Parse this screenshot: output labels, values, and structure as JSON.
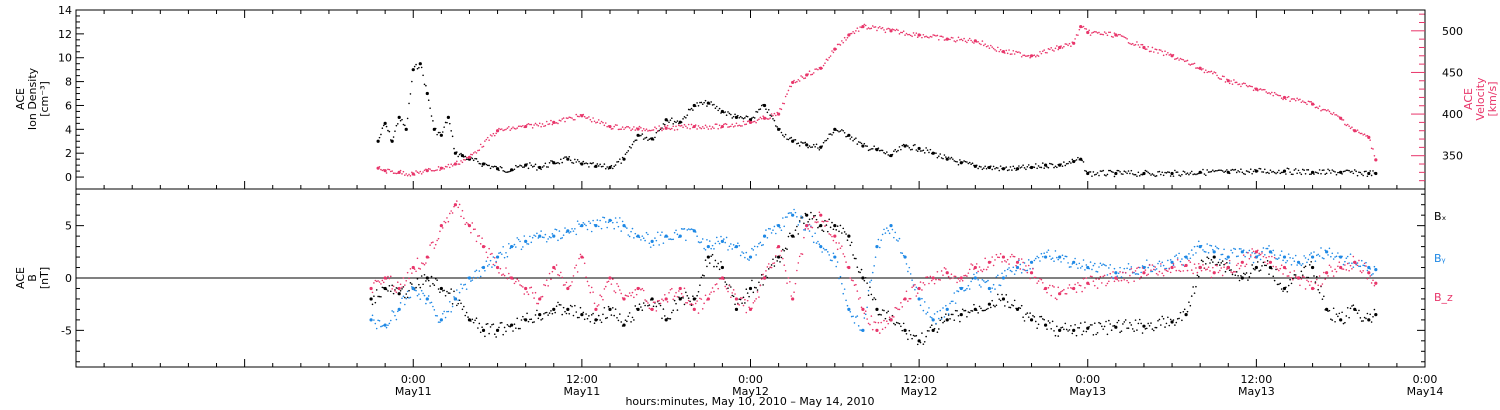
{
  "colors": {
    "black": "#000000",
    "pink": "#e8356a",
    "blue": "#1e88e5"
  },
  "x_axis": {
    "title": "hours:minutes, May 10, 2010 – May 14, 2010",
    "range_hours": [
      -24,
      72
    ],
    "ticks": [
      {
        "h": 0,
        "time": "0:00",
        "date": "May11"
      },
      {
        "h": 12,
        "time": "12:00",
        "date": "May11"
      },
      {
        "h": 24,
        "time": "0:00",
        "date": "May12"
      },
      {
        "h": 36,
        "time": "12:00",
        "date": "May12"
      },
      {
        "h": 48,
        "time": "0:00",
        "date": "May13"
      },
      {
        "h": 60,
        "time": "12:00",
        "date": "May13"
      },
      {
        "h": 72,
        "time": "0:00",
        "date": "May14"
      }
    ]
  },
  "chart_data": [
    {
      "type": "scatter",
      "panel": "top",
      "left_axis": {
        "label_lines": [
          "ACE",
          "Ion Density",
          "[cm⁻³]"
        ],
        "ylim": [
          -1,
          14
        ],
        "ticks": [
          0,
          2,
          4,
          6,
          8,
          10,
          12,
          14
        ]
      },
      "right_axis": {
        "label_lines": [
          "ACE",
          "Velocity",
          "[km/s]"
        ],
        "ylim": [
          310,
          525
        ],
        "ticks": [
          350,
          400,
          450,
          500
        ]
      },
      "series": [
        {
          "name": "Ion Density",
          "axis": "left",
          "color": "#000000",
          "x": [
            -2.5,
            -2,
            -1.5,
            -1,
            -0.5,
            0,
            0.5,
            1,
            1.5,
            2,
            2.5,
            3,
            3.5,
            4,
            5,
            6,
            7,
            8,
            9,
            10,
            11,
            12,
            13,
            14,
            15,
            16,
            17,
            18,
            19,
            20,
            21,
            22,
            23,
            24,
            25,
            26,
            27,
            28,
            29,
            30,
            31,
            32,
            33,
            34,
            35,
            36,
            37,
            38,
            39,
            40,
            41,
            42,
            43,
            44,
            45,
            46,
            47,
            47.5,
            48,
            50,
            52,
            54,
            56,
            58,
            60,
            62,
            64,
            66,
            68,
            68.5
          ],
          "y": [
            3,
            4.5,
            3,
            5,
            4,
            9,
            9.5,
            7,
            4,
            3.5,
            5,
            2,
            1.8,
            1.5,
            1.1,
            0.7,
            0.6,
            1,
            0.8,
            1.2,
            1.5,
            1.1,
            0.9,
            0.8,
            1.5,
            3.5,
            3.2,
            4.8,
            4.6,
            6,
            6.2,
            5.5,
            5,
            4.8,
            6,
            4,
            3,
            2.7,
            2.5,
            4,
            3.5,
            2.6,
            2.3,
            1.8,
            2.6,
            2.4,
            2,
            1.5,
            1.2,
            0.9,
            0.8,
            0.7,
            0.7,
            0.8,
            1,
            1,
            1.3,
            1.5,
            0.3,
            0.3,
            0.3,
            0.3,
            0.4,
            0.4,
            0.5,
            0.5,
            0.4,
            0.4,
            0.3,
            0.3
          ]
        },
        {
          "name": "Velocity",
          "axis": "right",
          "color": "#e8356a",
          "x": [
            -2.5,
            -2,
            -1,
            0,
            1,
            2,
            3,
            4,
            6,
            8,
            10,
            12,
            14,
            16,
            18,
            20,
            22,
            24,
            25,
            26,
            27,
            28,
            29,
            30,
            31,
            32,
            34,
            36,
            38,
            40,
            42,
            44,
            46,
            47,
            47.5,
            48,
            50,
            52,
            54,
            56,
            58,
            60,
            62,
            64,
            66,
            67,
            68,
            68.5
          ],
          "y": [
            335,
            332,
            330,
            328,
            332,
            335,
            340,
            348,
            380,
            385,
            390,
            398,
            385,
            382,
            383,
            385,
            385,
            390,
            395,
            400,
            438,
            447,
            455,
            478,
            495,
            505,
            500,
            495,
            490,
            488,
            475,
            470,
            480,
            485,
            505,
            498,
            495,
            480,
            470,
            455,
            440,
            430,
            420,
            412,
            395,
            380,
            372,
            345
          ]
        }
      ]
    },
    {
      "type": "scatter",
      "panel": "bottom",
      "left_axis": {
        "label_lines": [
          "ACE",
          "B",
          "[nT]"
        ],
        "ylim": [
          -8.5,
          8.5
        ],
        "ticks": [
          -5,
          0,
          5
        ]
      },
      "legend_position": "right",
      "series": [
        {
          "name": "Bₓ",
          "color": "#000000",
          "x": [
            -3,
            -2,
            -1,
            0,
            1,
            2,
            3,
            4,
            5,
            6,
            7,
            8,
            9,
            10,
            11,
            12,
            13,
            14,
            15,
            16,
            17,
            18,
            19,
            20,
            21,
            22,
            23,
            24,
            25,
            26,
            27,
            28,
            29,
            30,
            31,
            32,
            33,
            34,
            35,
            36,
            37,
            38,
            39,
            40,
            41,
            42,
            43,
            44,
            45,
            46,
            47,
            48,
            50,
            52,
            54,
            55,
            56,
            57,
            58,
            59,
            60,
            61,
            62,
            63,
            64,
            65,
            66,
            67,
            68,
            68.5
          ],
          "y": [
            -2,
            -1,
            -1.5,
            -1,
            0,
            -1,
            -2,
            -4,
            -5,
            -5,
            -4.5,
            -4,
            -3.5,
            -3,
            -3,
            -3.5,
            -4,
            -3,
            -4.5,
            -3,
            -2,
            -4,
            -2,
            -2,
            2,
            1,
            -3,
            -1,
            0,
            2,
            4,
            6,
            5,
            5,
            4,
            0,
            -3,
            -4,
            -5,
            -6,
            -5,
            -4,
            -3.5,
            -3,
            -2.5,
            -2,
            -3,
            -4,
            -4.5,
            -5,
            -5,
            -4.8,
            -4.7,
            -4.6,
            -4.2,
            -3.5,
            1,
            2,
            1,
            0,
            1,
            1,
            -1,
            0,
            1,
            -3,
            -4,
            -3,
            -4,
            -3.5
          ]
        },
        {
          "name": "Bᵧ",
          "color": "#1e88e5",
          "x": [
            -3,
            -2,
            -1,
            0,
            1,
            2,
            3,
            4,
            5,
            6,
            7,
            8,
            9,
            10,
            11,
            12,
            13,
            14,
            15,
            16,
            17,
            18,
            19,
            20,
            21,
            22,
            23,
            24,
            25,
            26,
            27,
            28,
            29,
            30,
            31,
            32,
            33,
            34,
            35,
            36,
            37,
            38,
            39,
            40,
            41,
            42,
            43,
            44,
            45,
            46,
            47,
            48,
            50,
            52,
            54,
            55,
            56,
            57,
            58,
            59,
            60,
            61,
            62,
            63,
            64,
            65,
            66,
            67,
            68,
            68.5
          ],
          "y": [
            -4,
            -4.5,
            -3,
            -1,
            -2,
            -4,
            -2,
            0,
            1,
            2,
            3,
            3.5,
            4,
            4,
            4.5,
            5,
            5,
            5.5,
            5,
            4,
            3.5,
            4,
            4,
            4.5,
            3,
            3.5,
            3,
            2,
            4,
            5,
            6,
            5,
            3,
            2,
            -3,
            -5,
            3,
            5,
            2,
            -2,
            -4,
            -3,
            -1,
            0,
            -1,
            0,
            1,
            1.5,
            2,
            2,
            1.5,
            1,
            0.5,
            1,
            1.5,
            2,
            3,
            2.5,
            2,
            2.5,
            2,
            2.5,
            2,
            1.5,
            2,
            2.5,
            2,
            1.5,
            1,
            0.8
          ]
        },
        {
          "name": "B_z",
          "color": "#e8356a",
          "x": [
            -3,
            -2,
            -1,
            0,
            1,
            2,
            3,
            4,
            5,
            6,
            7,
            8,
            9,
            10,
            11,
            12,
            13,
            14,
            15,
            16,
            17,
            18,
            19,
            20,
            21,
            22,
            23,
            24,
            25,
            26,
            27,
            28,
            29,
            30,
            31,
            32,
            33,
            34,
            35,
            36,
            37,
            38,
            39,
            40,
            41,
            42,
            43,
            44,
            45,
            46,
            47,
            48,
            50,
            52,
            54,
            55,
            56,
            57,
            58,
            59,
            60,
            61,
            62,
            63,
            64,
            65,
            66,
            67,
            68,
            68.5
          ],
          "y": [
            -1,
            0,
            -1,
            1,
            2,
            5,
            7,
            5,
            3,
            1,
            0,
            -1,
            -2,
            1,
            -1,
            2,
            -3,
            0,
            -2,
            -1,
            -3,
            -2,
            -1,
            -3,
            -2,
            0,
            -2,
            -3,
            0,
            3,
            -2,
            5,
            6,
            4,
            1,
            -3,
            -5,
            -4,
            -2,
            -1,
            0,
            0.5,
            0,
            1,
            1.5,
            2,
            1.5,
            0.5,
            -1,
            -1.5,
            -1,
            -0.5,
            0,
            0.5,
            1,
            1.2,
            1,
            0.5,
            1,
            1.5,
            2.5,
            1.5,
            1,
            0,
            -1,
            0.5,
            1,
            1.5,
            0.5,
            -0.5
          ]
        }
      ]
    }
  ]
}
